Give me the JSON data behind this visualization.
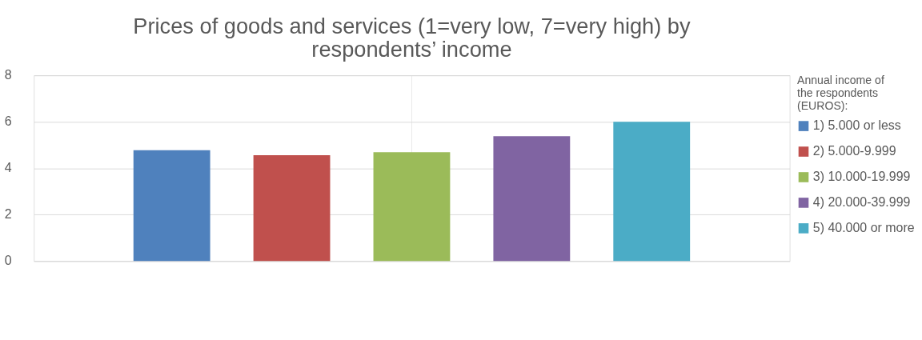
{
  "chart_data": {
    "type": "bar",
    "title": "Prices of goods and services (1=very low, 7=very high) by respondents’ income",
    "categories": [
      null
    ],
    "series": [
      {
        "name": "1) 5.000  or less",
        "color": "#4f81bd",
        "values": [
          4.77
        ]
      },
      {
        "name": "2) 5.000-9.999",
        "color": "#c0504d",
        "values": [
          4.56
        ]
      },
      {
        "name": "3) 10.000-19.999",
        "color": "#9bbb59",
        "values": [
          4.69
        ]
      },
      {
        "name": "4) 20.000-39.999",
        "color": "#8064a2",
        "values": [
          5.38
        ]
      },
      {
        "name": "5) 40.000  or more",
        "color": "#4bacc6",
        "values": [
          6.0
        ]
      }
    ],
    "legend_title": "Annual income of the respondents (EUROS):",
    "ylim": [
      0,
      8
    ],
    "yticks": [
      0,
      2,
      4,
      6,
      8
    ],
    "grid": "y",
    "legend": "right"
  }
}
